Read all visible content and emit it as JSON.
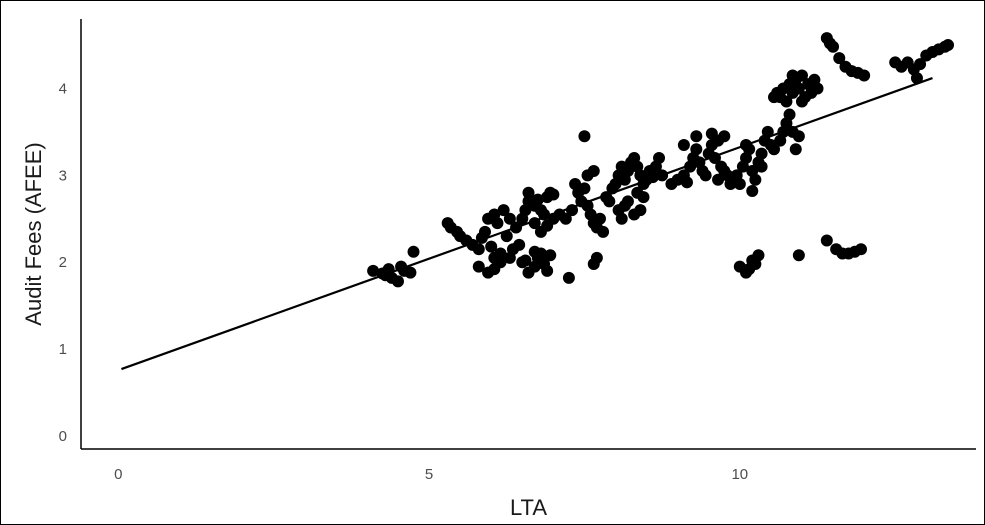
{
  "chart_data": {
    "type": "scatter",
    "xlabel": "LTA",
    "ylabel": "Audit Fees (AFEE)",
    "x_ticks": [
      0,
      5,
      10
    ],
    "y_ticks": [
      0,
      1,
      2,
      3,
      4
    ],
    "xlim": [
      -0.6,
      13.8
    ],
    "ylim": [
      -0.15,
      4.8
    ],
    "grid": false,
    "legend": "none",
    "colors": {
      "points": "#000000",
      "line": "#000000",
      "axis": "#000000"
    },
    "fit_line": {
      "x": [
        0.05,
        13.1
      ],
      "y": [
        0.77,
        4.12
      ]
    },
    "points": [
      [
        4.1,
        1.9
      ],
      [
        4.25,
        1.87
      ],
      [
        4.35,
        1.92
      ],
      [
        4.4,
        1.82
      ],
      [
        4.5,
        1.78
      ],
      [
        4.6,
        1.9
      ],
      [
        4.7,
        1.88
      ],
      [
        4.75,
        2.12
      ],
      [
        4.55,
        1.95
      ],
      [
        4.3,
        1.85
      ],
      [
        5.3,
        2.45
      ],
      [
        5.35,
        2.4
      ],
      [
        5.45,
        2.35
      ],
      [
        5.5,
        2.3
      ],
      [
        5.6,
        2.25
      ],
      [
        5.7,
        2.2
      ],
      [
        5.8,
        2.15
      ],
      [
        5.85,
        2.28
      ],
      [
        5.9,
        2.35
      ],
      [
        6.0,
        2.18
      ],
      [
        5.95,
        2.5
      ],
      [
        6.05,
        2.55
      ],
      [
        6.1,
        2.45
      ],
      [
        6.2,
        2.6
      ],
      [
        6.3,
        2.5
      ],
      [
        6.4,
        2.4
      ],
      [
        6.25,
        2.3
      ],
      [
        6.15,
        2.1
      ],
      [
        6.05,
        2.05
      ],
      [
        6.35,
        2.15
      ],
      [
        5.8,
        1.95
      ],
      [
        5.95,
        1.88
      ],
      [
        6.05,
        1.92
      ],
      [
        6.15,
        2.0
      ],
      [
        6.3,
        2.05
      ],
      [
        6.45,
        2.2
      ],
      [
        6.5,
        2.5
      ],
      [
        6.55,
        2.6
      ],
      [
        6.6,
        2.7
      ],
      [
        6.7,
        2.65
      ],
      [
        6.75,
        2.72
      ],
      [
        6.8,
        2.6
      ],
      [
        6.85,
        2.55
      ],
      [
        6.9,
        2.75
      ],
      [
        6.95,
        2.8
      ],
      [
        7.0,
        2.78
      ],
      [
        6.6,
        2.8
      ],
      [
        6.7,
        2.45
      ],
      [
        6.8,
        2.35
      ],
      [
        6.9,
        2.42
      ],
      [
        7.0,
        2.5
      ],
      [
        7.1,
        2.55
      ],
      [
        6.5,
        2.0
      ],
      [
        6.6,
        1.88
      ],
      [
        6.7,
        1.95
      ],
      [
        6.75,
        2.05
      ],
      [
        6.8,
        2.1
      ],
      [
        6.85,
        1.98
      ],
      [
        6.9,
        1.9
      ],
      [
        6.95,
        2.08
      ],
      [
        6.7,
        2.12
      ],
      [
        6.55,
        2.02
      ],
      [
        7.25,
        1.82
      ],
      [
        7.2,
        2.5
      ],
      [
        7.3,
        2.6
      ],
      [
        7.35,
        2.9
      ],
      [
        7.4,
        2.8
      ],
      [
        7.45,
        2.7
      ],
      [
        7.5,
        2.85
      ],
      [
        7.55,
        2.65
      ],
      [
        7.6,
        2.55
      ],
      [
        7.65,
        2.45
      ],
      [
        7.7,
        2.4
      ],
      [
        7.75,
        2.5
      ],
      [
        7.8,
        2.35
      ],
      [
        7.85,
        2.75
      ],
      [
        7.9,
        2.7
      ],
      [
        7.55,
        3.0
      ],
      [
        7.5,
        3.45
      ],
      [
        7.65,
        3.05
      ],
      [
        7.7,
        2.05
      ],
      [
        7.65,
        1.98
      ],
      [
        7.95,
        2.85
      ],
      [
        8.0,
        2.9
      ],
      [
        8.05,
        3.0
      ],
      [
        8.1,
        3.1
      ],
      [
        8.15,
        2.95
      ],
      [
        8.2,
        3.05
      ],
      [
        8.25,
        3.15
      ],
      [
        8.3,
        3.2
      ],
      [
        8.35,
        3.1
      ],
      [
        8.4,
        3.0
      ],
      [
        8.05,
        2.6
      ],
      [
        8.1,
        2.5
      ],
      [
        8.15,
        2.65
      ],
      [
        8.2,
        2.7
      ],
      [
        8.3,
        2.55
      ],
      [
        8.4,
        2.6
      ],
      [
        8.45,
        2.75
      ],
      [
        8.5,
        2.95
      ],
      [
        8.55,
        3.05
      ],
      [
        8.6,
        2.98
      ],
      [
        8.65,
        3.1
      ],
      [
        8.7,
        3.2
      ],
      [
        8.75,
        3.0
      ],
      [
        8.45,
        2.9
      ],
      [
        8.35,
        2.8
      ],
      [
        8.9,
        2.9
      ],
      [
        9.0,
        2.95
      ],
      [
        9.1,
        3.0
      ],
      [
        9.15,
        2.92
      ],
      [
        9.2,
        3.1
      ],
      [
        9.25,
        3.2
      ],
      [
        9.3,
        3.3
      ],
      [
        9.35,
        3.15
      ],
      [
        9.4,
        3.05
      ],
      [
        9.45,
        3.0
      ],
      [
        9.5,
        3.25
      ],
      [
        9.55,
        3.35
      ],
      [
        9.6,
        3.2
      ],
      [
        9.65,
        3.4
      ],
      [
        9.7,
        3.1
      ],
      [
        9.75,
        3.05
      ],
      [
        9.8,
        3.0
      ],
      [
        9.85,
        2.9
      ],
      [
        9.3,
        3.45
      ],
      [
        9.55,
        3.48
      ],
      [
        9.1,
        3.35
      ],
      [
        9.75,
        3.45
      ],
      [
        9.65,
        2.95
      ],
      [
        9.95,
        3.0
      ],
      [
        10.0,
        2.9
      ],
      [
        10.05,
        3.1
      ],
      [
        10.1,
        3.2
      ],
      [
        10.15,
        3.3
      ],
      [
        10.2,
        3.05
      ],
      [
        10.25,
        2.95
      ],
      [
        10.3,
        3.15
      ],
      [
        10.35,
        3.25
      ],
      [
        10.4,
        3.4
      ],
      [
        10.45,
        3.5
      ],
      [
        10.5,
        3.35
      ],
      [
        10.55,
        3.3
      ],
      [
        10.2,
        2.82
      ],
      [
        10.1,
        3.35
      ],
      [
        10.35,
        3.1
      ],
      [
        10.0,
        1.95
      ],
      [
        10.1,
        1.88
      ],
      [
        10.15,
        1.92
      ],
      [
        10.2,
        2.02
      ],
      [
        10.3,
        2.08
      ],
      [
        10.25,
        1.98
      ],
      [
        10.65,
        3.4
      ],
      [
        10.7,
        3.5
      ],
      [
        10.75,
        3.6
      ],
      [
        10.8,
        3.7
      ],
      [
        10.85,
        3.5
      ],
      [
        10.9,
        3.3
      ],
      [
        10.95,
        3.45
      ],
      [
        10.65,
        3.9
      ],
      [
        10.7,
        4.0
      ],
      [
        10.75,
        3.85
      ],
      [
        10.8,
        4.05
      ],
      [
        10.85,
        3.95
      ],
      [
        10.9,
        4.1
      ],
      [
        10.95,
        4.0
      ],
      [
        11.0,
        4.15
      ],
      [
        11.05,
        3.9
      ],
      [
        11.1,
        4.05
      ],
      [
        11.15,
        3.95
      ],
      [
        11.2,
        4.1
      ],
      [
        10.55,
        3.9
      ],
      [
        10.6,
        3.95
      ],
      [
        10.85,
        4.15
      ],
      [
        11.0,
        3.85
      ],
      [
        11.25,
        4.0
      ],
      [
        10.95,
        2.08
      ],
      [
        11.4,
        2.25
      ],
      [
        11.55,
        2.15
      ],
      [
        11.65,
        2.1
      ],
      [
        11.75,
        2.1
      ],
      [
        11.85,
        2.12
      ],
      [
        11.95,
        2.15
      ],
      [
        11.4,
        4.58
      ],
      [
        11.45,
        4.52
      ],
      [
        11.5,
        4.48
      ],
      [
        11.6,
        4.35
      ],
      [
        11.7,
        4.25
      ],
      [
        11.8,
        4.2
      ],
      [
        11.9,
        4.18
      ],
      [
        12.0,
        4.15
      ],
      [
        12.5,
        4.3
      ],
      [
        12.6,
        4.25
      ],
      [
        12.7,
        4.3
      ],
      [
        12.8,
        4.22
      ],
      [
        12.85,
        4.12
      ],
      [
        12.9,
        4.28
      ],
      [
        13.0,
        4.38
      ],
      [
        13.1,
        4.42
      ],
      [
        13.2,
        4.45
      ],
      [
        13.3,
        4.48
      ],
      [
        13.35,
        4.5
      ]
    ]
  }
}
